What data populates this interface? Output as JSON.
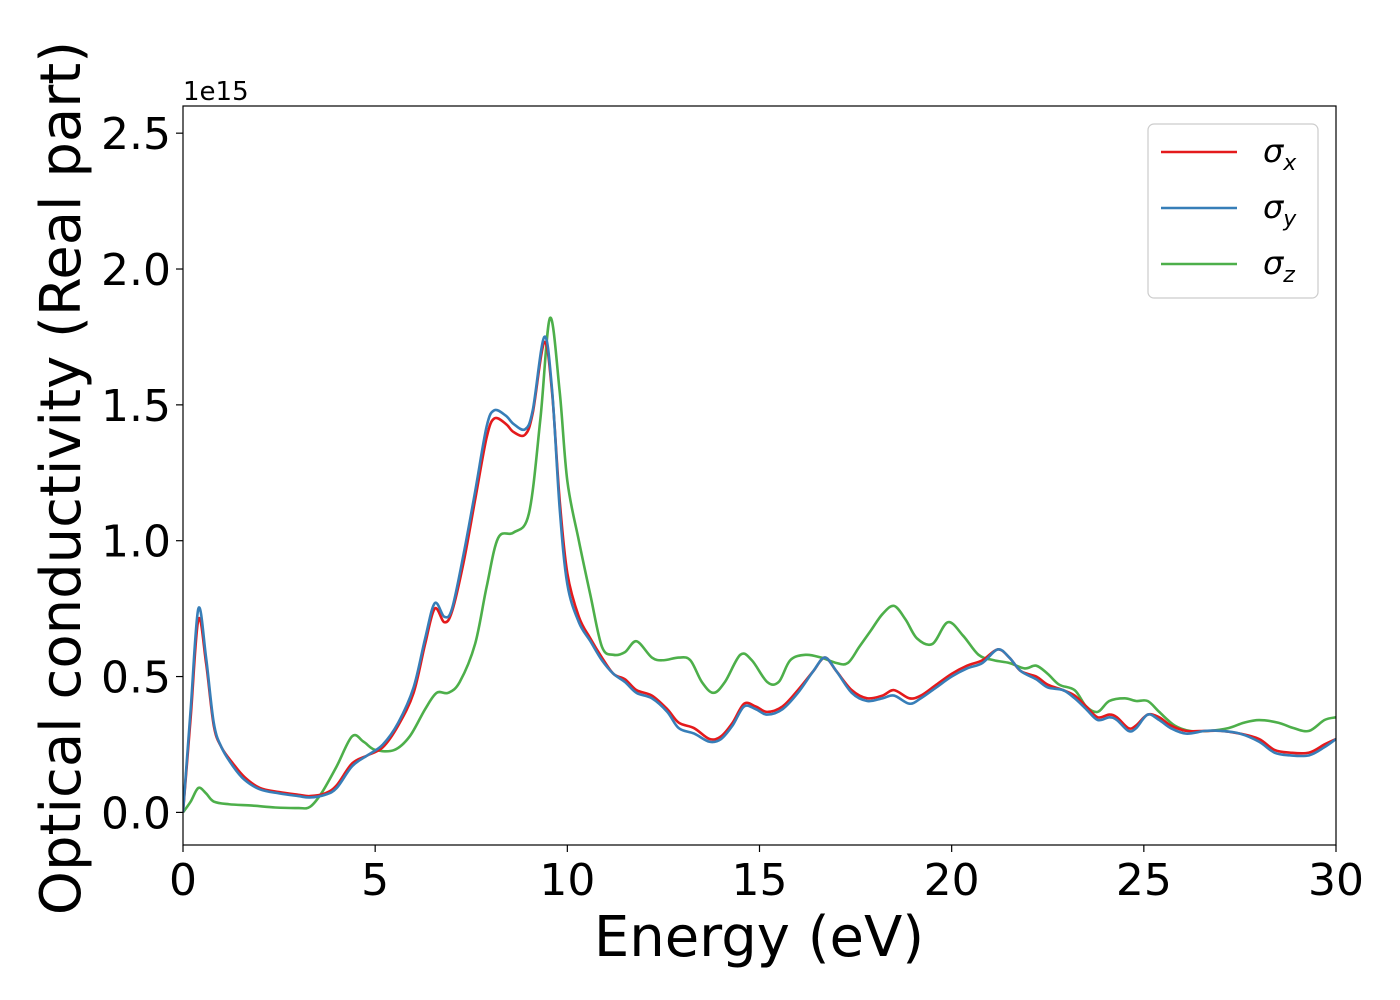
{
  "chart_data": {
    "type": "line",
    "xlabel": "Energy (eV)",
    "ylabel": "Optical conductivity (Real part)",
    "offset_text": "1e15",
    "xlim": [
      0,
      30
    ],
    "ylim": [
      -0.12,
      2.6
    ],
    "xticks": [
      {
        "value": 0,
        "label": "0"
      },
      {
        "value": 5,
        "label": "5"
      },
      {
        "value": 10,
        "label": "10"
      },
      {
        "value": 15,
        "label": "15"
      },
      {
        "value": 20,
        "label": "20"
      },
      {
        "value": 25,
        "label": "25"
      },
      {
        "value": 30,
        "label": "30"
      }
    ],
    "yticks": [
      {
        "value": 0.0,
        "label": "0.0"
      },
      {
        "value": 0.5,
        "label": "0.5"
      },
      {
        "value": 1.0,
        "label": "1.0"
      },
      {
        "value": 1.5,
        "label": "1.5"
      },
      {
        "value": 2.0,
        "label": "2.0"
      },
      {
        "value": 2.5,
        "label": "2.5"
      }
    ],
    "grid": false,
    "legend_position": "top-right",
    "series": [
      {
        "name": "σ",
        "sub": "x",
        "color": "#e41a1c",
        "points": [
          [
            0,
            0.0
          ],
          [
            0.2,
            0.35
          ],
          [
            0.4,
            0.71
          ],
          [
            0.6,
            0.55
          ],
          [
            0.8,
            0.32
          ],
          [
            1.0,
            0.24
          ],
          [
            1.3,
            0.18
          ],
          [
            1.6,
            0.13
          ],
          [
            2.0,
            0.09
          ],
          [
            2.5,
            0.075
          ],
          [
            3.0,
            0.065
          ],
          [
            3.3,
            0.06
          ],
          [
            3.7,
            0.07
          ],
          [
            4.0,
            0.1
          ],
          [
            4.4,
            0.18
          ],
          [
            4.8,
            0.21
          ],
          [
            5.2,
            0.24
          ],
          [
            5.6,
            0.32
          ],
          [
            6.0,
            0.44
          ],
          [
            6.3,
            0.62
          ],
          [
            6.55,
            0.75
          ],
          [
            6.8,
            0.7
          ],
          [
            7.0,
            0.74
          ],
          [
            7.3,
            0.92
          ],
          [
            7.6,
            1.15
          ],
          [
            7.9,
            1.38
          ],
          [
            8.1,
            1.45
          ],
          [
            8.4,
            1.43
          ],
          [
            8.6,
            1.4
          ],
          [
            8.9,
            1.39
          ],
          [
            9.1,
            1.47
          ],
          [
            9.4,
            1.73
          ],
          [
            9.6,
            1.55
          ],
          [
            9.8,
            1.15
          ],
          [
            10.0,
            0.88
          ],
          [
            10.3,
            0.72
          ],
          [
            10.6,
            0.64
          ],
          [
            10.9,
            0.57
          ],
          [
            11.2,
            0.51
          ],
          [
            11.5,
            0.49
          ],
          [
            11.8,
            0.45
          ],
          [
            12.2,
            0.43
          ],
          [
            12.6,
            0.38
          ],
          [
            12.9,
            0.33
          ],
          [
            13.3,
            0.31
          ],
          [
            13.7,
            0.27
          ],
          [
            14.0,
            0.28
          ],
          [
            14.3,
            0.33
          ],
          [
            14.6,
            0.4
          ],
          [
            14.9,
            0.39
          ],
          [
            15.2,
            0.37
          ],
          [
            15.6,
            0.39
          ],
          [
            16.0,
            0.45
          ],
          [
            16.4,
            0.52
          ],
          [
            16.7,
            0.57
          ],
          [
            17.0,
            0.52
          ],
          [
            17.4,
            0.45
          ],
          [
            17.8,
            0.42
          ],
          [
            18.2,
            0.43
          ],
          [
            18.5,
            0.45
          ],
          [
            18.9,
            0.42
          ],
          [
            19.2,
            0.43
          ],
          [
            19.6,
            0.47
          ],
          [
            20.0,
            0.51
          ],
          [
            20.4,
            0.54
          ],
          [
            20.8,
            0.56
          ],
          [
            21.2,
            0.6
          ],
          [
            21.5,
            0.57
          ],
          [
            21.8,
            0.52
          ],
          [
            22.2,
            0.5
          ],
          [
            22.5,
            0.47
          ],
          [
            22.9,
            0.45
          ],
          [
            23.2,
            0.43
          ],
          [
            23.5,
            0.39
          ],
          [
            23.8,
            0.35
          ],
          [
            24.1,
            0.36
          ],
          [
            24.3,
            0.35
          ],
          [
            24.6,
            0.31
          ],
          [
            24.8,
            0.32
          ],
          [
            25.1,
            0.36
          ],
          [
            25.4,
            0.35
          ],
          [
            25.7,
            0.32
          ],
          [
            26.1,
            0.3
          ],
          [
            26.6,
            0.3
          ],
          [
            27.0,
            0.3
          ],
          [
            27.5,
            0.29
          ],
          [
            28.0,
            0.27
          ],
          [
            28.4,
            0.23
          ],
          [
            28.8,
            0.22
          ],
          [
            29.3,
            0.22
          ],
          [
            29.7,
            0.25
          ],
          [
            30.0,
            0.27
          ]
        ]
      },
      {
        "name": "σ",
        "sub": "y",
        "color": "#377eb8",
        "points": [
          [
            0,
            0.0
          ],
          [
            0.2,
            0.38
          ],
          [
            0.4,
            0.75
          ],
          [
            0.6,
            0.57
          ],
          [
            0.8,
            0.33
          ],
          [
            1.0,
            0.24
          ],
          [
            1.3,
            0.17
          ],
          [
            1.6,
            0.12
          ],
          [
            2.0,
            0.085
          ],
          [
            2.5,
            0.07
          ],
          [
            3.0,
            0.06
          ],
          [
            3.3,
            0.055
          ],
          [
            3.7,
            0.065
          ],
          [
            4.0,
            0.09
          ],
          [
            4.4,
            0.17
          ],
          [
            4.8,
            0.21
          ],
          [
            5.2,
            0.25
          ],
          [
            5.6,
            0.33
          ],
          [
            6.0,
            0.46
          ],
          [
            6.3,
            0.64
          ],
          [
            6.55,
            0.77
          ],
          [
            6.8,
            0.72
          ],
          [
            7.0,
            0.75
          ],
          [
            7.3,
            0.95
          ],
          [
            7.6,
            1.18
          ],
          [
            7.9,
            1.42
          ],
          [
            8.1,
            1.48
          ],
          [
            8.4,
            1.46
          ],
          [
            8.6,
            1.43
          ],
          [
            8.9,
            1.41
          ],
          [
            9.1,
            1.48
          ],
          [
            9.4,
            1.75
          ],
          [
            9.6,
            1.56
          ],
          [
            9.8,
            1.12
          ],
          [
            10.0,
            0.84
          ],
          [
            10.3,
            0.7
          ],
          [
            10.6,
            0.63
          ],
          [
            10.9,
            0.56
          ],
          [
            11.2,
            0.51
          ],
          [
            11.5,
            0.48
          ],
          [
            11.8,
            0.44
          ],
          [
            12.2,
            0.42
          ],
          [
            12.6,
            0.37
          ],
          [
            12.9,
            0.31
          ],
          [
            13.3,
            0.29
          ],
          [
            13.7,
            0.26
          ],
          [
            14.0,
            0.27
          ],
          [
            14.3,
            0.32
          ],
          [
            14.6,
            0.39
          ],
          [
            14.9,
            0.38
          ],
          [
            15.2,
            0.36
          ],
          [
            15.6,
            0.38
          ],
          [
            16.0,
            0.44
          ],
          [
            16.4,
            0.52
          ],
          [
            16.7,
            0.57
          ],
          [
            17.0,
            0.52
          ],
          [
            17.4,
            0.44
          ],
          [
            17.8,
            0.41
          ],
          [
            18.2,
            0.42
          ],
          [
            18.5,
            0.43
          ],
          [
            18.9,
            0.4
          ],
          [
            19.2,
            0.42
          ],
          [
            19.6,
            0.46
          ],
          [
            20.0,
            0.5
          ],
          [
            20.4,
            0.53
          ],
          [
            20.8,
            0.55
          ],
          [
            21.2,
            0.6
          ],
          [
            21.5,
            0.57
          ],
          [
            21.8,
            0.52
          ],
          [
            22.2,
            0.49
          ],
          [
            22.5,
            0.46
          ],
          [
            22.9,
            0.45
          ],
          [
            23.2,
            0.42
          ],
          [
            23.5,
            0.38
          ],
          [
            23.8,
            0.34
          ],
          [
            24.1,
            0.35
          ],
          [
            24.3,
            0.34
          ],
          [
            24.6,
            0.3
          ],
          [
            24.8,
            0.31
          ],
          [
            25.1,
            0.36
          ],
          [
            25.4,
            0.34
          ],
          [
            25.7,
            0.31
          ],
          [
            26.1,
            0.29
          ],
          [
            26.6,
            0.3
          ],
          [
            27.0,
            0.3
          ],
          [
            27.5,
            0.29
          ],
          [
            28.0,
            0.26
          ],
          [
            28.4,
            0.22
          ],
          [
            28.8,
            0.21
          ],
          [
            29.3,
            0.21
          ],
          [
            29.7,
            0.24
          ],
          [
            30.0,
            0.27
          ]
        ]
      },
      {
        "name": "σ",
        "sub": "z",
        "color": "#4daf4a",
        "points": [
          [
            0,
            0.0
          ],
          [
            0.2,
            0.04
          ],
          [
            0.4,
            0.09
          ],
          [
            0.6,
            0.07
          ],
          [
            0.8,
            0.04
          ],
          [
            1.2,
            0.03
          ],
          [
            1.8,
            0.025
          ],
          [
            2.4,
            0.018
          ],
          [
            3.0,
            0.016
          ],
          [
            3.3,
            0.02
          ],
          [
            3.6,
            0.07
          ],
          [
            4.0,
            0.17
          ],
          [
            4.4,
            0.28
          ],
          [
            4.7,
            0.26
          ],
          [
            5.0,
            0.23
          ],
          [
            5.5,
            0.23
          ],
          [
            5.9,
            0.28
          ],
          [
            6.3,
            0.38
          ],
          [
            6.6,
            0.44
          ],
          [
            6.9,
            0.44
          ],
          [
            7.2,
            0.48
          ],
          [
            7.6,
            0.62
          ],
          [
            7.9,
            0.83
          ],
          [
            8.2,
            1.01
          ],
          [
            8.6,
            1.03
          ],
          [
            9.0,
            1.1
          ],
          [
            9.3,
            1.45
          ],
          [
            9.55,
            1.82
          ],
          [
            9.8,
            1.55
          ],
          [
            10.0,
            1.22
          ],
          [
            10.3,
            1.0
          ],
          [
            10.6,
            0.8
          ],
          [
            10.9,
            0.61
          ],
          [
            11.2,
            0.58
          ],
          [
            11.5,
            0.59
          ],
          [
            11.8,
            0.63
          ],
          [
            12.2,
            0.57
          ],
          [
            12.5,
            0.56
          ],
          [
            12.9,
            0.57
          ],
          [
            13.2,
            0.56
          ],
          [
            13.5,
            0.48
          ],
          [
            13.8,
            0.44
          ],
          [
            14.1,
            0.48
          ],
          [
            14.5,
            0.58
          ],
          [
            14.8,
            0.56
          ],
          [
            15.2,
            0.48
          ],
          [
            15.5,
            0.48
          ],
          [
            15.8,
            0.56
          ],
          [
            16.2,
            0.58
          ],
          [
            16.6,
            0.57
          ],
          [
            17.0,
            0.55
          ],
          [
            17.3,
            0.55
          ],
          [
            17.6,
            0.61
          ],
          [
            17.9,
            0.67
          ],
          [
            18.2,
            0.73
          ],
          [
            18.5,
            0.76
          ],
          [
            18.8,
            0.71
          ],
          [
            19.1,
            0.64
          ],
          [
            19.5,
            0.62
          ],
          [
            19.9,
            0.7
          ],
          [
            20.3,
            0.65
          ],
          [
            20.7,
            0.58
          ],
          [
            21.1,
            0.56
          ],
          [
            21.5,
            0.55
          ],
          [
            21.9,
            0.53
          ],
          [
            22.2,
            0.54
          ],
          [
            22.5,
            0.51
          ],
          [
            22.8,
            0.47
          ],
          [
            23.2,
            0.45
          ],
          [
            23.5,
            0.39
          ],
          [
            23.8,
            0.37
          ],
          [
            24.1,
            0.41
          ],
          [
            24.5,
            0.42
          ],
          [
            24.8,
            0.41
          ],
          [
            25.1,
            0.41
          ],
          [
            25.4,
            0.37
          ],
          [
            25.8,
            0.32
          ],
          [
            26.2,
            0.3
          ],
          [
            26.7,
            0.3
          ],
          [
            27.2,
            0.31
          ],
          [
            27.6,
            0.33
          ],
          [
            28.0,
            0.34
          ],
          [
            28.5,
            0.33
          ],
          [
            28.9,
            0.31
          ],
          [
            29.3,
            0.3
          ],
          [
            29.7,
            0.34
          ],
          [
            30.0,
            0.35
          ]
        ]
      }
    ]
  }
}
